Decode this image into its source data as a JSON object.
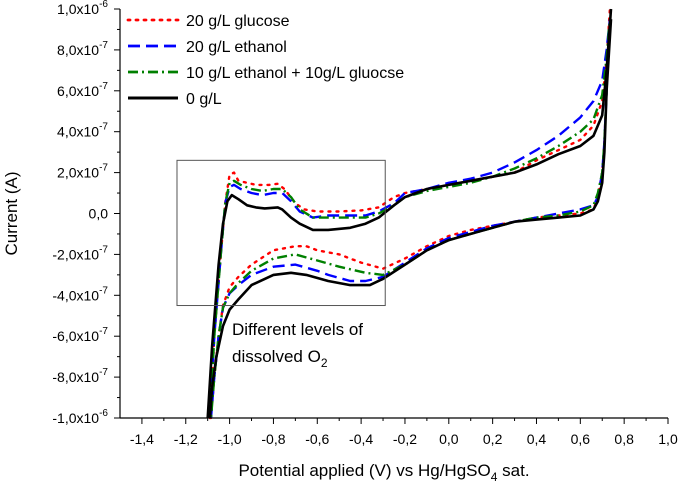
{
  "chart_data": {
    "type": "line",
    "xlabel": "Potential applied (V) vs Hg/HgSO",
    "xlabel_sub": "4",
    "xlabel_tail": " sat.",
    "ylabel": "Current (A)",
    "xlim": [
      -1.5,
      1.0
    ],
    "ylim": [
      -1e-06,
      1e-06
    ],
    "x_ticks": [
      -1.4,
      -1.2,
      -1.0,
      -0.8,
      -0.6,
      -0.4,
      -0.2,
      0.0,
      0.2,
      0.4,
      0.6,
      0.8,
      1.0
    ],
    "x_tick_labels": [
      "-1,4",
      "-1,2",
      "-1,0",
      "-0,8",
      "-0,6",
      "-0,4",
      "-0,2",
      "0,0",
      "0,2",
      "0,4",
      "0,6",
      "0,8",
      "1,0"
    ],
    "y_ticks": [
      1e-06,
      8e-07,
      6e-07,
      4e-07,
      2e-07,
      0,
      -2e-07,
      -4e-07,
      -6e-07,
      -8e-07,
      -1e-06
    ],
    "y_tick_labels": [
      {
        "mant": "1,0x10",
        "exp": "-6"
      },
      {
        "mant": "8,0x10",
        "exp": "-7"
      },
      {
        "mant": "6,0x10",
        "exp": "-7"
      },
      {
        "mant": "4,0x10",
        "exp": "-7"
      },
      {
        "mant": "2,0x10",
        "exp": "-7"
      },
      {
        "mant": "0,0",
        "exp": ""
      },
      {
        "mant": "-2,0x10",
        "exp": "-7"
      },
      {
        "mant": "-4,0x10",
        "exp": "-7"
      },
      {
        "mant": "-6,0x10",
        "exp": "-7"
      },
      {
        "mant": "-8,0x10",
        "exp": "-7"
      },
      {
        "mant": "-1,0x10",
        "exp": "-6"
      }
    ],
    "legend_position": "top-left",
    "grid": false,
    "series": [
      {
        "name": "20 g/L glucose",
        "color": "#ff0000",
        "dash": "dot",
        "forward": [
          [
            -1.09,
            -1e-06
          ],
          [
            -1.07,
            -6e-07
          ],
          [
            -1.04,
            -2e-07
          ],
          [
            -1.02,
            5e-08
          ],
          [
            -1.0,
            1.9e-07
          ],
          [
            -0.98,
            2e-07
          ],
          [
            -0.96,
            1.6e-07
          ],
          [
            -0.92,
            1.5e-07
          ],
          [
            -0.88,
            1.4e-07
          ],
          [
            -0.82,
            1.4e-07
          ],
          [
            -0.78,
            1.45e-07
          ],
          [
            -0.75,
            1.2e-07
          ],
          [
            -0.7,
            5e-08
          ],
          [
            -0.66,
            2e-08
          ],
          [
            -0.6,
            1e-08
          ],
          [
            -0.5,
            1e-08
          ],
          [
            -0.4,
            1.5e-08
          ],
          [
            -0.32,
            3e-08
          ],
          [
            -0.25,
            8e-08
          ],
          [
            -0.2,
            1e-07
          ],
          [
            -0.1,
            1.2e-07
          ],
          [
            0.0,
            1.4e-07
          ],
          [
            0.1,
            1.6e-07
          ],
          [
            0.2,
            1.8e-07
          ],
          [
            0.3,
            2e-07
          ],
          [
            0.4,
            2.6e-07
          ],
          [
            0.5,
            3.1e-07
          ],
          [
            0.6,
            3.6e-07
          ],
          [
            0.66,
            4.3e-07
          ],
          [
            0.7,
            5.5e-07
          ],
          [
            0.72,
            7.5e-07
          ],
          [
            0.735,
            1e-06
          ]
        ],
        "reverse": [
          [
            0.73,
            9e-07
          ],
          [
            0.72,
            6e-07
          ],
          [
            0.71,
            3.5e-07
          ],
          [
            0.7,
            2e-07
          ],
          [
            0.68,
            8e-08
          ],
          [
            0.66,
            2e-08
          ],
          [
            0.6,
            0.0
          ],
          [
            0.5,
            -1e-08
          ],
          [
            0.4,
            -2e-08
          ],
          [
            0.3,
            -4e-08
          ],
          [
            0.2,
            -6e-08
          ],
          [
            0.1,
            -8e-08
          ],
          [
            0.0,
            -1.1e-07
          ],
          [
            -0.1,
            -1.6e-07
          ],
          [
            -0.2,
            -2.2e-07
          ],
          [
            -0.3,
            -2.7e-07
          ],
          [
            -0.4,
            -2.4e-07
          ],
          [
            -0.5,
            -2e-07
          ],
          [
            -0.6,
            -1.8e-07
          ],
          [
            -0.65,
            -1.6e-07
          ],
          [
            -0.7,
            -1.6e-07
          ],
          [
            -0.8,
            -1.8e-07
          ],
          [
            -0.9,
            -2.5e-07
          ],
          [
            -0.96,
            -3.1e-07
          ],
          [
            -1.0,
            -3.6e-07
          ],
          [
            -1.03,
            -4.5e-07
          ],
          [
            -1.05,
            -6e-07
          ],
          [
            -1.07,
            -8e-07
          ],
          [
            -1.085,
            -1e-06
          ]
        ]
      },
      {
        "name": "20 g/L ethanol",
        "color": "#0000ff",
        "dash": "dash",
        "forward": [
          [
            -1.09,
            -1e-06
          ],
          [
            -1.07,
            -6e-07
          ],
          [
            -1.04,
            -2e-07
          ],
          [
            -1.02,
            5e-08
          ],
          [
            -1.0,
            1.3e-07
          ],
          [
            -0.98,
            1.4e-07
          ],
          [
            -0.95,
            1.2e-07
          ],
          [
            -0.9,
            1e-07
          ],
          [
            -0.85,
            9e-08
          ],
          [
            -0.8,
            1e-07
          ],
          [
            -0.76,
            1e-07
          ],
          [
            -0.72,
            6e-08
          ],
          [
            -0.68,
            1e-08
          ],
          [
            -0.62,
            -2e-08
          ],
          [
            -0.55,
            -1e-08
          ],
          [
            -0.45,
            -1e-08
          ],
          [
            -0.38,
            -1e-08
          ],
          [
            -0.32,
            1e-08
          ],
          [
            -0.25,
            5e-08
          ],
          [
            -0.2,
            1e-07
          ],
          [
            -0.1,
            1.2e-07
          ],
          [
            0.0,
            1.5e-07
          ],
          [
            0.1,
            1.7e-07
          ],
          [
            0.2,
            2e-07
          ],
          [
            0.3,
            2.5e-07
          ],
          [
            0.4,
            3.1e-07
          ],
          [
            0.5,
            3.8e-07
          ],
          [
            0.6,
            4.7e-07
          ],
          [
            0.66,
            5.5e-07
          ],
          [
            0.7,
            6.5e-07
          ],
          [
            0.72,
            8e-07
          ],
          [
            0.735,
            9.5e-07
          ]
        ],
        "reverse": [
          [
            0.73,
            9e-07
          ],
          [
            0.72,
            6e-07
          ],
          [
            0.71,
            3.5e-07
          ],
          [
            0.7,
            2e-07
          ],
          [
            0.68,
            8e-08
          ],
          [
            0.66,
            4e-08
          ],
          [
            0.6,
            2e-08
          ],
          [
            0.5,
            0.0
          ],
          [
            0.4,
            -2e-08
          ],
          [
            0.3,
            -4e-08
          ],
          [
            0.2,
            -6e-08
          ],
          [
            0.1,
            -9e-08
          ],
          [
            0.0,
            -1.2e-07
          ],
          [
            -0.1,
            -1.7e-07
          ],
          [
            -0.2,
            -2.4e-07
          ],
          [
            -0.3,
            -3.1e-07
          ],
          [
            -0.38,
            -3.3e-07
          ],
          [
            -0.45,
            -3.3e-07
          ],
          [
            -0.55,
            -3e-07
          ],
          [
            -0.6,
            -2.8e-07
          ],
          [
            -0.7,
            -2.5e-07
          ],
          [
            -0.8,
            -2.6e-07
          ],
          [
            -0.9,
            -3e-07
          ],
          [
            -0.96,
            -3.5e-07
          ],
          [
            -1.0,
            -3.9e-07
          ],
          [
            -1.03,
            -4.6e-07
          ],
          [
            -1.05,
            -6e-07
          ],
          [
            -1.07,
            -8e-07
          ],
          [
            -1.085,
            -1e-06
          ]
        ]
      },
      {
        "name": "10 g/L ethanol + 10g/L gluocse",
        "color": "#008000",
        "dash": "dashdot",
        "forward": [
          [
            -1.09,
            -1e-06
          ],
          [
            -1.07,
            -6e-07
          ],
          [
            -1.04,
            -2e-07
          ],
          [
            -1.02,
            5e-08
          ],
          [
            -1.0,
            1.5e-07
          ],
          [
            -0.98,
            1.6e-07
          ],
          [
            -0.95,
            1.4e-07
          ],
          [
            -0.9,
            1.2e-07
          ],
          [
            -0.85,
            1.1e-07
          ],
          [
            -0.8,
            1.2e-07
          ],
          [
            -0.76,
            1.2e-07
          ],
          [
            -0.72,
            8e-08
          ],
          [
            -0.68,
            2e-08
          ],
          [
            -0.62,
            -2e-08
          ],
          [
            -0.55,
            -2e-08
          ],
          [
            -0.45,
            -2e-08
          ],
          [
            -0.38,
            -2e-08
          ],
          [
            -0.32,
            0.0
          ],
          [
            -0.25,
            4e-08
          ],
          [
            -0.2,
            8e-08
          ],
          [
            -0.1,
            1.1e-07
          ],
          [
            0.0,
            1.3e-07
          ],
          [
            0.1,
            1.5e-07
          ],
          [
            0.2,
            1.8e-07
          ],
          [
            0.3,
            2.2e-07
          ],
          [
            0.4,
            2.7e-07
          ],
          [
            0.5,
            3.3e-07
          ],
          [
            0.6,
            4e-07
          ],
          [
            0.66,
            4.6e-07
          ],
          [
            0.7,
            5.8e-07
          ],
          [
            0.72,
            7.6e-07
          ],
          [
            0.735,
            9.5e-07
          ]
        ],
        "reverse": [
          [
            0.73,
            9e-07
          ],
          [
            0.72,
            6e-07
          ],
          [
            0.71,
            3.5e-07
          ],
          [
            0.7,
            2e-07
          ],
          [
            0.68,
            1e-07
          ],
          [
            0.66,
            4e-08
          ],
          [
            0.6,
            1e-08
          ],
          [
            0.5,
            -1e-08
          ],
          [
            0.4,
            -2e-08
          ],
          [
            0.3,
            -4e-08
          ],
          [
            0.2,
            -7e-08
          ],
          [
            0.1,
            -1e-07
          ],
          [
            0.0,
            -1.3e-07
          ],
          [
            -0.1,
            -1.8e-07
          ],
          [
            -0.2,
            -2.5e-07
          ],
          [
            -0.3,
            -3e-07
          ],
          [
            -0.38,
            -2.9e-07
          ],
          [
            -0.5,
            -2.6e-07
          ],
          [
            -0.6,
            -2.3e-07
          ],
          [
            -0.7,
            -2e-07
          ],
          [
            -0.8,
            -2.2e-07
          ],
          [
            -0.9,
            -2.8e-07
          ],
          [
            -0.96,
            -3.4e-07
          ],
          [
            -1.0,
            -3.9e-07
          ],
          [
            -1.03,
            -4.6e-07
          ],
          [
            -1.05,
            -6e-07
          ],
          [
            -1.07,
            -8e-07
          ],
          [
            -1.085,
            -1e-06
          ]
        ]
      },
      {
        "name": "0 g/L",
        "color": "#000000",
        "dash": "solid",
        "forward": [
          [
            -1.1,
            -1e-06
          ],
          [
            -1.08,
            -6.5e-07
          ],
          [
            -1.05,
            -2.5e-07
          ],
          [
            -1.03,
            -5e-08
          ],
          [
            -1.01,
            6e-08
          ],
          [
            -0.99,
            9e-08
          ],
          [
            -0.96,
            7e-08
          ],
          [
            -0.92,
            4e-08
          ],
          [
            -0.88,
            3e-08
          ],
          [
            -0.84,
            2.5e-08
          ],
          [
            -0.78,
            3e-08
          ],
          [
            -0.76,
            2e-08
          ],
          [
            -0.72,
            -2e-08
          ],
          [
            -0.68,
            -5e-08
          ],
          [
            -0.62,
            -8e-08
          ],
          [
            -0.55,
            -8e-08
          ],
          [
            -0.45,
            -7e-08
          ],
          [
            -0.38,
            -5e-08
          ],
          [
            -0.32,
            -2e-08
          ],
          [
            -0.25,
            4e-08
          ],
          [
            -0.2,
            8e-08
          ],
          [
            -0.1,
            1.2e-07
          ],
          [
            0.0,
            1.4e-07
          ],
          [
            0.1,
            1.6e-07
          ],
          [
            0.2,
            1.8e-07
          ],
          [
            0.3,
            2e-07
          ],
          [
            0.4,
            2.4e-07
          ],
          [
            0.5,
            2.9e-07
          ],
          [
            0.6,
            3.3e-07
          ],
          [
            0.66,
            3.8e-07
          ],
          [
            0.7,
            4.8e-07
          ],
          [
            0.72,
            7e-07
          ],
          [
            0.74,
            1e-06
          ]
        ],
        "reverse": [
          [
            0.74,
            9.5e-07
          ],
          [
            0.72,
            6e-07
          ],
          [
            0.71,
            3e-07
          ],
          [
            0.7,
            1.5e-07
          ],
          [
            0.68,
            6e-08
          ],
          [
            0.66,
            2e-08
          ],
          [
            0.6,
            -1e-08
          ],
          [
            0.5,
            -2e-08
          ],
          [
            0.4,
            -3e-08
          ],
          [
            0.3,
            -4e-08
          ],
          [
            0.2,
            -7e-08
          ],
          [
            0.1,
            -1e-07
          ],
          [
            0.0,
            -1.3e-07
          ],
          [
            -0.1,
            -1.8e-07
          ],
          [
            -0.2,
            -2.5e-07
          ],
          [
            -0.3,
            -3.2e-07
          ],
          [
            -0.36,
            -3.5e-07
          ],
          [
            -0.45,
            -3.5e-07
          ],
          [
            -0.55,
            -3.3e-07
          ],
          [
            -0.65,
            -3e-07
          ],
          [
            -0.72,
            -2.9e-07
          ],
          [
            -0.8,
            -3e-07
          ],
          [
            -0.9,
            -3.5e-07
          ],
          [
            -0.96,
            -4.2e-07
          ],
          [
            -1.0,
            -4.7e-07
          ],
          [
            -1.03,
            -5.5e-07
          ],
          [
            -1.06,
            -7e-07
          ],
          [
            -1.08,
            -8.5e-07
          ],
          [
            -1.09,
            -1e-06
          ]
        ]
      }
    ],
    "annotation": {
      "box_x": [
        -1.24,
        -0.29
      ],
      "box_y": [
        -4.5e-07,
        2.6e-07
      ],
      "line1": "Different levels of",
      "line2": "dissolved O",
      "line2_sub": "2"
    }
  }
}
